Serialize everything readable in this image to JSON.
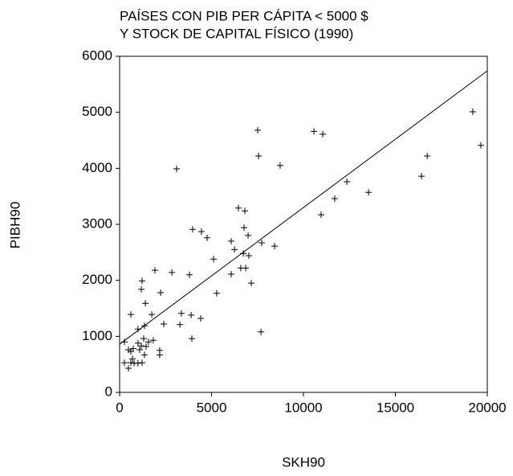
{
  "chart_data": {
    "type": "scatter",
    "title": [
      "PAÍSES CON PIB PER CÁPITA < 5000 $",
      "Y STOCK DE CAPITAL FÍSICO (1990)"
    ],
    "x_label": "SKH90",
    "y_label": "PIBH90",
    "xlim": [
      0,
      20000
    ],
    "ylim": [
      0,
      6000
    ],
    "xticks": [
      0,
      5000,
      10000,
      15000,
      20000
    ],
    "yticks": [
      0,
      1000,
      2000,
      3000,
      4000,
      5000,
      6000
    ],
    "color": "#000000",
    "series": [
      {
        "x": [
          19210,
          19650,
          16420,
          16730,
          13540,
          12360,
          11700,
          10960,
          8730,
          7510,
          7560,
          10570,
          11050,
          3100,
          6460,
          6810,
          6770,
          6990,
          7730,
          8430,
          6070,
          6250,
          6730,
          6590,
          6860,
          7030,
          6070,
          7160,
          3970,
          4450,
          4760,
          5110,
          5280,
          3800,
          4410,
          3360,
          3890,
          3280,
          3930,
          7690,
          1920,
          2840,
          2230,
          2400,
          2180,
          2180,
          610,
          1220,
          1180,
          1400,
          1750,
          1350,
          1000,
          1830,
          1310,
          1570,
          1180,
          1440,
          1090,
          1000,
          260,
          480,
          740,
          1350,
          700,
          610,
          790,
          1220,
          1000,
          260,
          480,
          610
        ],
        "values": [
          5010,
          4410,
          3860,
          4220,
          3570,
          3760,
          3460,
          3170,
          4050,
          4680,
          4220,
          4660,
          4610,
          3990,
          3290,
          3240,
          2940,
          2800,
          2670,
          2610,
          2700,
          2550,
          2480,
          2220,
          2220,
          2440,
          2110,
          1950,
          2910,
          2870,
          2760,
          2380,
          1770,
          2100,
          1320,
          1410,
          1380,
          1210,
          960,
          1080,
          2180,
          2140,
          1780,
          1220,
          750,
          670,
          1390,
          1990,
          1840,
          1590,
          1390,
          1190,
          1130,
          930,
          960,
          900,
          830,
          820,
          760,
          880,
          900,
          760,
          780,
          670,
          600,
          530,
          520,
          530,
          520,
          530,
          430,
          730
        ]
      }
    ],
    "fit_line": {
      "x": [
        0,
        20000
      ],
      "values": [
        860,
        5740
      ]
    }
  }
}
